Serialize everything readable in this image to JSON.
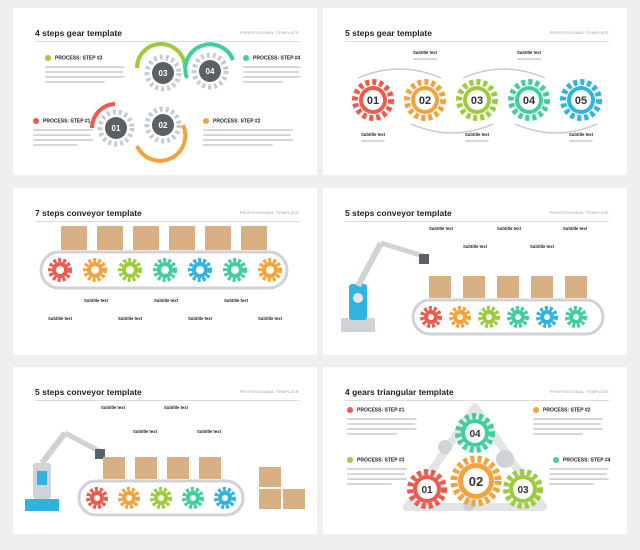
{
  "slides": [
    {
      "title": "4 steps gear template",
      "tag": "PROFESSIONAL TEMPLATE",
      "steps": [
        "PROCESS: STEP #3",
        "PROCESS: STEP #4",
        "PROCESS: STEP #1",
        "PROCESS: STEP #2"
      ],
      "gear_labels": [
        "03",
        "04",
        "01",
        "02"
      ]
    },
    {
      "title": "5 steps gear template",
      "tag": "PROFESSIONAL TEMPLATE",
      "subtitle": "Subtitle text",
      "gear_labels": [
        "01",
        "02",
        "03",
        "04",
        "05"
      ]
    },
    {
      "title": "7 steps conveyor template",
      "tag": "PROFESSIONAL TEMPLATE",
      "subtitle": "Subtitle text"
    },
    {
      "title": "5 steps conveyor template",
      "tag": "PROFESSIONAL TEMPLATE",
      "subtitle": "Subtitle text"
    },
    {
      "title": "5 steps conveyor template",
      "tag": "PROFESSIONAL TEMPLATE",
      "subtitle": "Subtitle text"
    },
    {
      "title": "4 gears triangular template",
      "tag": "PROFESSIONAL TEMPLATE",
      "steps": [
        "PROCESS: STEP #1",
        "PROCESS: STEP #2",
        "PROCESS: STEP #3",
        "PROCESS: STEP #4"
      ],
      "gear_labels": [
        "04",
        "01",
        "02",
        "03"
      ]
    }
  ],
  "colors": {
    "red": "#ef5a4d",
    "orange": "#f5a23b",
    "green": "#9dcb3b",
    "teal": "#3fcf9f",
    "blue": "#2fb3e3",
    "gray": "#cfd2d6",
    "box": "#d9b083"
  }
}
